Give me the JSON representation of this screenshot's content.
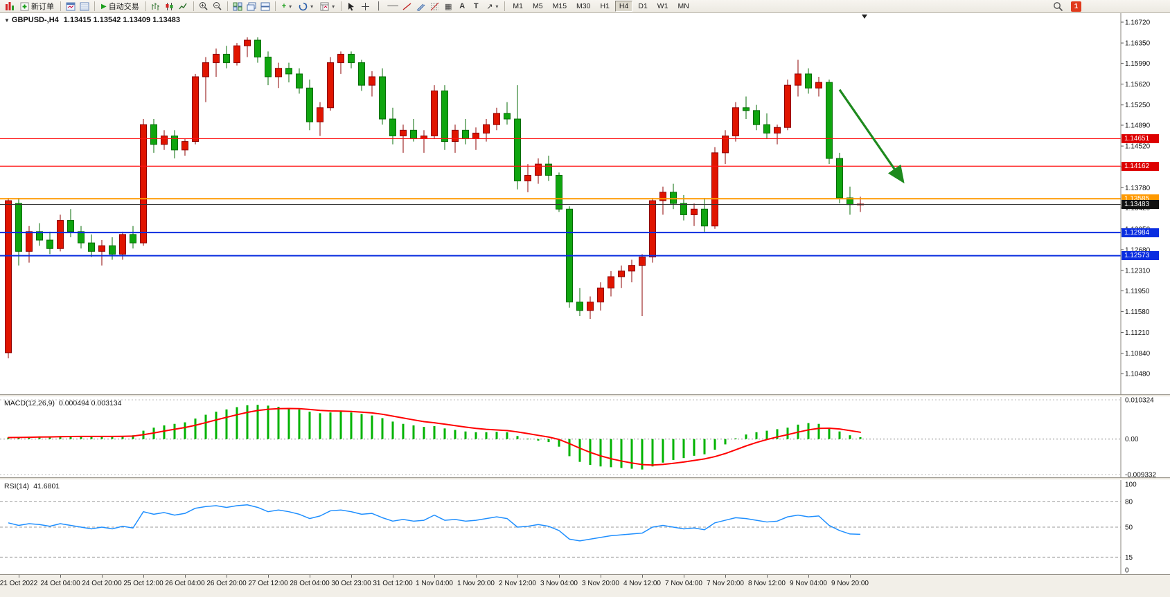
{
  "toolbar": {
    "new_order": "新订单",
    "auto_trading": "自动交易",
    "timeframes": [
      "M1",
      "M5",
      "M15",
      "M30",
      "H1",
      "H4",
      "D1",
      "W1",
      "MN"
    ],
    "active_timeframe": "H4",
    "notification_count": "1"
  },
  "symbol": {
    "name": "GBPUSD-,H4",
    "ohlc": "1.13415 1.13542 1.13409 1.13483"
  },
  "chart_data": {
    "type": "candlestick",
    "symbol": "GBPUSD-",
    "timeframe": "H4",
    "price_ticks": [
      "1.16720",
      "1.16350",
      "1.15990",
      "1.15620",
      "1.15250",
      "1.14890",
      "1.14520",
      "1.14150",
      "1.13780",
      "1.13420",
      "1.13050",
      "1.12680",
      "1.12310",
      "1.11950",
      "1.11580",
      "1.11210",
      "1.10840",
      "1.10480"
    ],
    "time_labels": [
      "21 Oct 2022",
      "24 Oct 04:00",
      "24 Oct 20:00",
      "25 Oct 12:00",
      "26 Oct 04:00",
      "26 Oct 20:00",
      "27 Oct 12:00",
      "28 Oct 04:00",
      "30 Oct 23:00",
      "31 Oct 12:00",
      "1 Nov 04:00",
      "1 Nov 20:00",
      "2 Nov 12:00",
      "3 Nov 04:00",
      "3 Nov 20:00",
      "4 Nov 12:00",
      "7 Nov 04:00",
      "7 Nov 20:00",
      "8 Nov 12:00",
      "9 Nov 04:00",
      "9 Nov 20:00"
    ],
    "colors": {
      "bull": "#e01400",
      "bull_border": "#8d0000",
      "bear": "#0fa50f",
      "bear_border": "#056b05",
      "arrow": "#1e8a1e"
    },
    "candles": [
      [
        1.1085,
        1.136,
        1.1075,
        1.1355
      ],
      [
        1.135,
        1.136,
        1.124,
        1.1265
      ],
      [
        1.1265,
        1.131,
        1.1245,
        1.13
      ],
      [
        1.13,
        1.1315,
        1.1275,
        1.1285
      ],
      [
        1.1285,
        1.13,
        1.126,
        1.127
      ],
      [
        1.127,
        1.133,
        1.1265,
        1.132
      ],
      [
        1.132,
        1.134,
        1.129,
        1.13
      ],
      [
        1.13,
        1.131,
        1.127,
        1.128
      ],
      [
        1.128,
        1.1295,
        1.1255,
        1.1265
      ],
      [
        1.1265,
        1.1285,
        1.124,
        1.1275
      ],
      [
        1.1275,
        1.129,
        1.125,
        1.126
      ],
      [
        1.126,
        1.13,
        1.125,
        1.1295
      ],
      [
        1.1295,
        1.131,
        1.127,
        1.128
      ],
      [
        1.128,
        1.15,
        1.1275,
        1.149
      ],
      [
        1.149,
        1.15,
        1.144,
        1.1455
      ],
      [
        1.1455,
        1.148,
        1.1445,
        1.147
      ],
      [
        1.147,
        1.148,
        1.143,
        1.1445
      ],
      [
        1.1445,
        1.1465,
        1.1435,
        1.146
      ],
      [
        1.146,
        1.158,
        1.1455,
        1.1575
      ],
      [
        1.1575,
        1.161,
        1.153,
        1.16
      ],
      [
        1.16,
        1.1625,
        1.1575,
        1.1615
      ],
      [
        1.1615,
        1.163,
        1.159,
        1.16
      ],
      [
        1.16,
        1.1635,
        1.1595,
        1.163
      ],
      [
        1.163,
        1.1645,
        1.161,
        1.164
      ],
      [
        1.164,
        1.1645,
        1.16,
        1.161
      ],
      [
        1.161,
        1.162,
        1.156,
        1.1575
      ],
      [
        1.1575,
        1.16,
        1.1555,
        1.159
      ],
      [
        1.159,
        1.16,
        1.1565,
        1.158
      ],
      [
        1.158,
        1.159,
        1.1545,
        1.1555
      ],
      [
        1.1555,
        1.157,
        1.148,
        1.1495
      ],
      [
        1.1495,
        1.153,
        1.147,
        1.152
      ],
      [
        1.152,
        1.161,
        1.1515,
        1.16
      ],
      [
        1.16,
        1.162,
        1.158,
        1.1615
      ],
      [
        1.1615,
        1.162,
        1.159,
        1.16
      ],
      [
        1.16,
        1.1605,
        1.155,
        1.156
      ],
      [
        1.156,
        1.1585,
        1.154,
        1.1575
      ],
      [
        1.1575,
        1.159,
        1.149,
        1.15
      ],
      [
        1.15,
        1.152,
        1.1455,
        1.147
      ],
      [
        1.147,
        1.149,
        1.144,
        1.148
      ],
      [
        1.148,
        1.15,
        1.146,
        1.1465
      ],
      [
        1.1465,
        1.148,
        1.144,
        1.147
      ],
      [
        1.147,
        1.156,
        1.1465,
        1.155
      ],
      [
        1.155,
        1.156,
        1.1445,
        1.146
      ],
      [
        1.146,
        1.149,
        1.144,
        1.148
      ],
      [
        1.148,
        1.15,
        1.1455,
        1.1465
      ],
      [
        1.1465,
        1.1485,
        1.1445,
        1.1475
      ],
      [
        1.1475,
        1.15,
        1.146,
        1.149
      ],
      [
        1.149,
        1.152,
        1.148,
        1.151
      ],
      [
        1.151,
        1.153,
        1.149,
        1.15
      ],
      [
        1.15,
        1.156,
        1.1375,
        1.139
      ],
      [
        1.139,
        1.142,
        1.137,
        1.14
      ],
      [
        1.14,
        1.143,
        1.1385,
        1.142
      ],
      [
        1.142,
        1.1435,
        1.139,
        1.14
      ],
      [
        1.14,
        1.1405,
        1.1335,
        1.134
      ],
      [
        1.134,
        1.1345,
        1.1165,
        1.1175
      ],
      [
        1.1175,
        1.12,
        1.115,
        1.116
      ],
      [
        1.116,
        1.1185,
        1.1145,
        1.1175
      ],
      [
        1.1175,
        1.121,
        1.116,
        1.12
      ],
      [
        1.12,
        1.123,
        1.1185,
        1.122
      ],
      [
        1.122,
        1.124,
        1.12,
        1.123
      ],
      [
        1.123,
        1.125,
        1.121,
        1.124
      ],
      [
        1.124,
        1.126,
        1.115,
        1.1255
      ],
      [
        1.1255,
        1.136,
        1.1245,
        1.1355
      ],
      [
        1.1355,
        1.138,
        1.133,
        1.137
      ],
      [
        1.137,
        1.1385,
        1.134,
        1.135
      ],
      [
        1.135,
        1.1365,
        1.132,
        1.133
      ],
      [
        1.133,
        1.135,
        1.131,
        1.134
      ],
      [
        1.134,
        1.136,
        1.13,
        1.131
      ],
      [
        1.131,
        1.145,
        1.1305,
        1.144
      ],
      [
        1.144,
        1.148,
        1.142,
        1.147
      ],
      [
        1.147,
        1.153,
        1.146,
        1.152
      ],
      [
        1.152,
        1.154,
        1.15,
        1.1515
      ],
      [
        1.1515,
        1.1525,
        1.148,
        1.149
      ],
      [
        1.149,
        1.151,
        1.1465,
        1.1475
      ],
      [
        1.1475,
        1.149,
        1.1455,
        1.1485
      ],
      [
        1.1485,
        1.157,
        1.148,
        1.156
      ],
      [
        1.156,
        1.1605,
        1.154,
        1.158
      ],
      [
        1.158,
        1.159,
        1.1545,
        1.1555
      ],
      [
        1.1555,
        1.1575,
        1.154,
        1.1565
      ],
      [
        1.1565,
        1.157,
        1.142,
        1.143
      ],
      [
        1.143,
        1.144,
        1.135,
        1.136
      ],
      [
        1.136,
        1.138,
        1.133,
        1.1348
      ],
      [
        1.1348,
        1.1362,
        1.1335,
        1.1349
      ]
    ],
    "hlines": [
      {
        "price": "1.14651",
        "color": "#ff1010",
        "w": 1.2,
        "label_bg": "#dd0000"
      },
      {
        "price": "1.14162",
        "color": "#ff1010",
        "w": 1.2,
        "label_bg": "#dd0000"
      },
      {
        "price": "1.13585",
        "color": "#ff9900",
        "w": 2,
        "label_bg": "#ff9900"
      },
      {
        "price": "1.13483",
        "color": "#333333",
        "w": 1,
        "label_bg": "#111111"
      },
      {
        "price": "1.12984",
        "color": "#0a2de0",
        "w": 2,
        "label_bg": "#0a2de0"
      },
      {
        "price": "1.12573",
        "color": "#0a2de0",
        "w": 2,
        "label_bg": "#0a2de0"
      }
    ],
    "trend_arrow": {
      "x1_candle": 80,
      "price1": 1.1552,
      "x2_candle": 86,
      "price2": 1.1392,
      "color": "#1e8a1e"
    },
    "indicators": [
      {
        "type": "macd",
        "label": "MACD(12,26,9)",
        "values_text": "0.000494 0.003134",
        "hist_color": "#00b300",
        "signal_color": "#ff0000",
        "axis_labels": [
          "0.010324",
          "0.00",
          "-0.009332"
        ],
        "axis_values": [
          0.010324,
          0,
          -0.009332
        ],
        "histogram": [
          0.0004,
          0.0005,
          0.0006,
          0.0007,
          0.0007,
          0.0008,
          0.0008,
          0.0008,
          0.0007,
          0.0007,
          0.0007,
          0.0008,
          0.001,
          0.0022,
          0.003,
          0.0036,
          0.004,
          0.0044,
          0.0054,
          0.0064,
          0.0072,
          0.0078,
          0.0084,
          0.0089,
          0.009,
          0.0088,
          0.0085,
          0.0082,
          0.0078,
          0.0072,
          0.0068,
          0.007,
          0.0072,
          0.007,
          0.0066,
          0.0062,
          0.0055,
          0.0046,
          0.004,
          0.0036,
          0.0032,
          0.0034,
          0.0028,
          0.0024,
          0.002,
          0.0018,
          0.0018,
          0.0019,
          0.0018,
          0.0008,
          0.0001,
          -0.0004,
          -0.0008,
          -0.002,
          -0.0045,
          -0.006,
          -0.0068,
          -0.0072,
          -0.0074,
          -0.0076,
          -0.0078,
          -0.008,
          -0.0072,
          -0.0062,
          -0.0055,
          -0.005,
          -0.0044,
          -0.004,
          -0.0028,
          -0.0014,
          0.0002,
          0.0012,
          0.0018,
          0.0022,
          0.0026,
          0.003,
          0.0038,
          0.0042,
          0.004,
          0.003,
          0.002,
          0.001,
          0.0005
        ]
      },
      {
        "type": "rsi",
        "label": "RSI(14)",
        "value_text": "41.6801",
        "color": "#1f8fff",
        "levels": [
          80,
          50,
          15
        ],
        "axis_labels": [
          "100",
          "80",
          "50",
          "15",
          "0"
        ],
        "axis_values": [
          100,
          80,
          50,
          15,
          0
        ],
        "values": [
          55,
          52,
          54,
          53,
          51,
          54,
          52,
          50,
          48,
          50,
          48,
          51,
          49,
          68,
          65,
          67,
          64,
          66,
          72,
          74,
          75,
          73,
          75,
          76,
          73,
          68,
          70,
          68,
          65,
          60,
          63,
          69,
          70,
          68,
          65,
          66,
          61,
          57,
          59,
          57,
          58,
          64,
          58,
          59,
          57,
          58,
          60,
          62,
          60,
          50,
          51,
          53,
          51,
          46,
          36,
          34,
          36,
          38,
          40,
          41,
          42,
          43,
          50,
          52,
          50,
          48,
          49,
          47,
          55,
          58,
          61,
          60,
          58,
          56,
          57,
          62,
          64,
          62,
          63,
          52,
          46,
          42,
          41.68
        ]
      }
    ]
  }
}
